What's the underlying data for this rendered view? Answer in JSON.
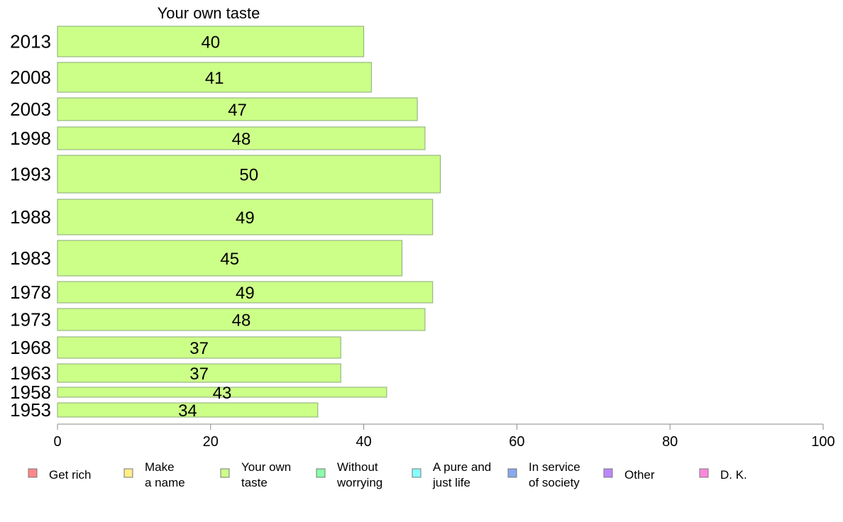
{
  "chart_data": {
    "type": "bar",
    "orientation": "horizontal",
    "title": "Your own taste",
    "categories": [
      "2013",
      "2008",
      "2003",
      "1998",
      "1993",
      "1988",
      "1983",
      "1978",
      "1973",
      "1968",
      "1963",
      "1958",
      "1953"
    ],
    "values": [
      40,
      41,
      47,
      48,
      50,
      49,
      45,
      49,
      48,
      37,
      37,
      43,
      34
    ],
    "xlim": [
      0,
      100
    ],
    "xticks": [
      0,
      20,
      40,
      60,
      80,
      100
    ],
    "bar_color": "#ccff88",
    "bar_stroke": "#88aa77",
    "legend": [
      {
        "lines": [
          "Get rich"
        ],
        "color": "#ff8888"
      },
      {
        "lines": [
          "Make",
          "a name"
        ],
        "color": "#ffee88"
      },
      {
        "lines": [
          "Your own",
          "taste"
        ],
        "color": "#ccff88"
      },
      {
        "lines": [
          "Without",
          "worrying"
        ],
        "color": "#88ffaa"
      },
      {
        "lines": [
          "A pure and",
          "just life"
        ],
        "color": "#88ffff"
      },
      {
        "lines": [
          "In service",
          "of society"
        ],
        "color": "#88aaee"
      },
      {
        "lines": [
          "Other"
        ],
        "color": "#bb88ff"
      },
      {
        "lines": [
          "D. K."
        ],
        "color": "#ff88dd"
      }
    ]
  }
}
